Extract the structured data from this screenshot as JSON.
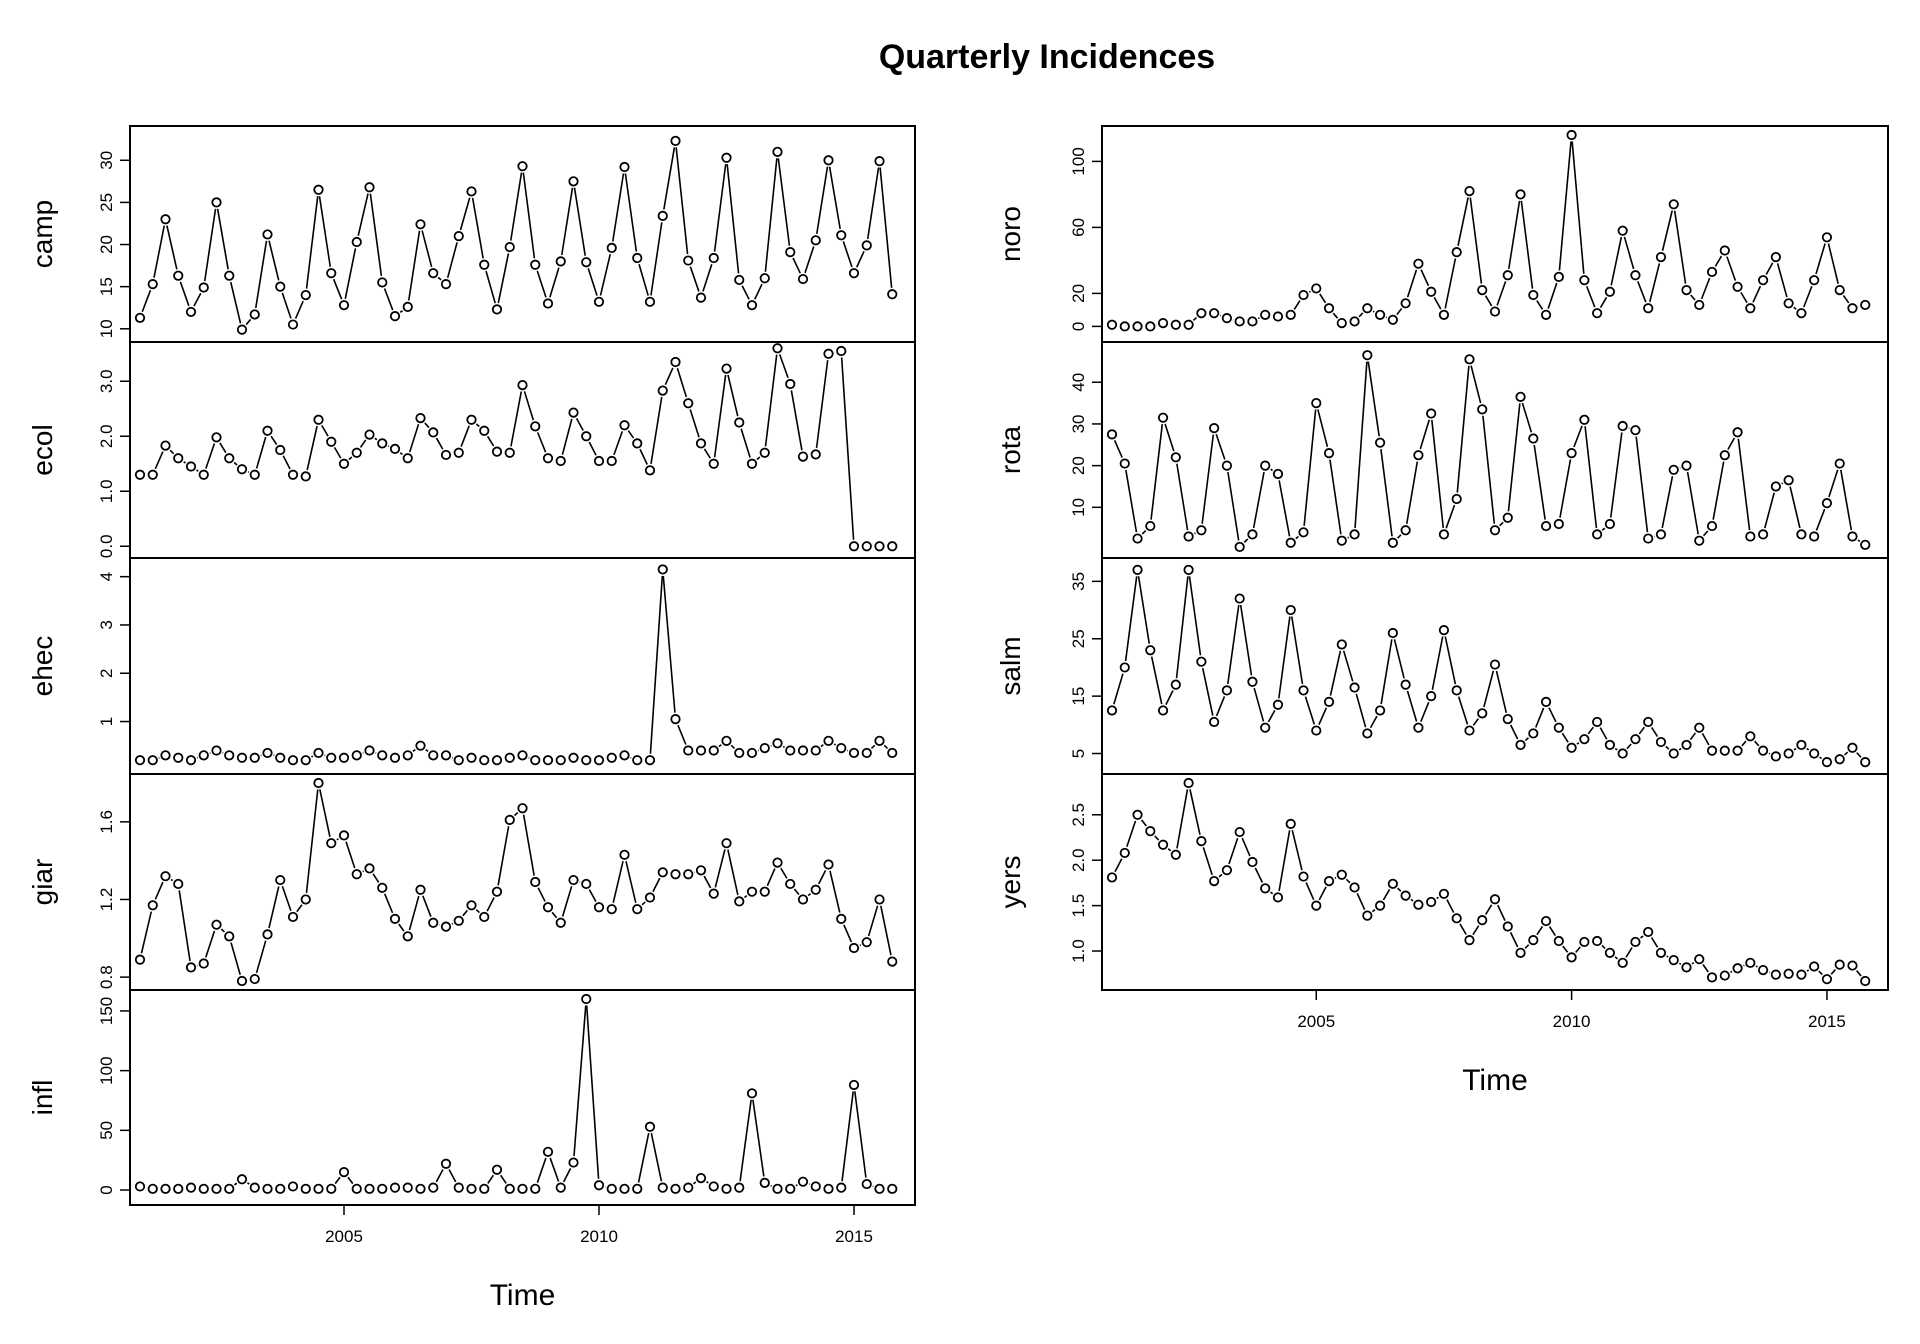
{
  "chart_data": {
    "type": "line",
    "title": "Quarterly Incidences",
    "xlabel": "Time",
    "x_start": 2001,
    "frequency": "quarterly",
    "xlim": [
      2001,
      2016
    ],
    "x_ticks": [
      "2005",
      "2010",
      "2015"
    ],
    "columns": [
      {
        "series": [
          {
            "name": "camp",
            "ylim": [
              9.5,
              33
            ],
            "y_ticks": [
              "10",
              "15",
              "20",
              "25",
              "30"
            ],
            "values": [
              11.3,
              15.3,
              23,
              16.3,
              12,
              14.9,
              25,
              16.3,
              9.9,
              11.7,
              21.2,
              15,
              10.5,
              14,
              26.5,
              16.6,
              12.8,
              20.3,
              26.8,
              15.5,
              11.5,
              12.6,
              22.4,
              16.6,
              15.3,
              21,
              26.3,
              17.6,
              12.3,
              19.7,
              29.3,
              17.6,
              13,
              18,
              27.5,
              17.9,
              13.2,
              19.6,
              29.2,
              18.4,
              13.2,
              23.4,
              32.3,
              18.1,
              13.7,
              18.4,
              30.3,
              15.8,
              12.8,
              16,
              31,
              19.1,
              15.9,
              20.5,
              30,
              21.1,
              16.6,
              19.9,
              29.9,
              14.1
            ]
          },
          {
            "name": "ecol",
            "ylim": [
              -0.05,
              3.55
            ],
            "y_ticks": [
              "0.0",
              "1.0",
              "2.0",
              "3.0"
            ],
            "values": [
              1.3,
              1.3,
              1.83,
              1.6,
              1.45,
              1.3,
              1.98,
              1.6,
              1.4,
              1.3,
              2.1,
              1.75,
              1.3,
              1.27,
              2.3,
              1.9,
              1.5,
              1.7,
              2.03,
              1.87,
              1.77,
              1.6,
              2.33,
              2.07,
              1.66,
              1.7,
              2.3,
              2.1,
              1.72,
              1.7,
              2.93,
              2.18,
              1.6,
              1.55,
              2.43,
              2,
              1.55,
              1.55,
              2.2,
              1.87,
              1.38,
              2.83,
              3.35,
              2.6,
              1.87,
              1.5,
              3.23,
              2.25,
              1.5,
              1.7,
              3.6,
              2.95,
              1.63,
              1.67,
              3.5,
              3.55,
              0,
              0,
              0,
              0
            ]
          },
          {
            "name": "ehec",
            "ylim": [
              0.1,
              4.2
            ],
            "y_ticks": [
              "1",
              "2",
              "3",
              "4"
            ],
            "values": [
              0.2,
              0.2,
              0.3,
              0.25,
              0.2,
              0.3,
              0.4,
              0.3,
              0.25,
              0.25,
              0.35,
              0.25,
              0.2,
              0.2,
              0.35,
              0.25,
              0.25,
              0.3,
              0.4,
              0.3,
              0.25,
              0.3,
              0.5,
              0.3,
              0.3,
              0.2,
              0.25,
              0.2,
              0.2,
              0.25,
              0.3,
              0.2,
              0.2,
              0.2,
              0.25,
              0.2,
              0.2,
              0.25,
              0.3,
              0.2,
              0.2,
              4.15,
              1.05,
              0.4,
              0.4,
              0.4,
              0.6,
              0.35,
              0.35,
              0.45,
              0.55,
              0.4,
              0.4,
              0.4,
              0.6,
              0.45,
              0.35,
              0.35,
              0.6,
              0.35
            ]
          },
          {
            "name": "giar",
            "ylim": [
              0.78,
              1.8
            ],
            "y_ticks": [
              "0.8",
              "1.2",
              "1.6"
            ],
            "values": [
              0.89,
              1.17,
              1.32,
              1.28,
              0.85,
              0.87,
              1.07,
              1.01,
              0.78,
              0.79,
              1.02,
              1.3,
              1.11,
              1.2,
              1.8,
              1.49,
              1.53,
              1.33,
              1.36,
              1.26,
              1.1,
              1.01,
              1.25,
              1.08,
              1.06,
              1.09,
              1.17,
              1.11,
              1.24,
              1.61,
              1.67,
              1.29,
              1.16,
              1.08,
              1.3,
              1.28,
              1.16,
              1.15,
              1.43,
              1.15,
              1.21,
              1.34,
              1.33,
              1.33,
              1.35,
              1.23,
              1.49,
              1.19,
              1.24,
              1.24,
              1.39,
              1.28,
              1.2,
              1.25,
              1.38,
              1.1,
              0.95,
              0.98,
              1.2,
              0.88
            ]
          },
          {
            "name": "infl",
            "ylim": [
              -5,
              160
            ],
            "y_ticks": [
              "0",
              "50",
              "100",
              "150"
            ],
            "values": [
              3,
              1,
              1,
              1,
              2,
              1,
              1,
              1,
              9,
              2,
              1,
              1,
              3,
              1,
              1,
              1,
              15,
              1,
              1,
              1,
              2,
              2,
              1,
              2,
              22,
              2,
              1,
              1,
              17,
              1,
              1,
              1,
              32,
              2,
              23,
              160,
              4,
              1,
              1,
              1,
              53,
              2,
              1,
              2,
              10,
              3,
              1,
              2,
              81,
              6,
              1,
              1,
              7,
              3,
              1,
              2,
              88,
              5,
              1,
              1
            ]
          }
        ]
      },
      {
        "series": [
          {
            "name": "noro",
            "ylim": [
              -4,
              116
            ],
            "y_ticks": [
              "0",
              "20",
              "60",
              "100"
            ],
            "values": [
              1,
              0,
              0,
              0,
              2,
              1,
              1,
              8,
              8,
              5,
              3,
              3,
              7,
              6,
              7,
              19,
              23,
              11,
              2,
              3,
              11,
              7,
              4,
              14,
              38,
              21,
              7,
              45,
              82,
              22,
              9,
              31,
              80,
              19,
              7,
              30,
              116,
              28,
              8,
              21,
              58,
              31,
              11,
              42,
              74,
              22,
              13,
              33,
              46,
              24,
              11,
              28,
              42,
              14,
              8,
              28,
              54,
              22,
              11,
              13
            ]
          },
          {
            "name": "rota",
            "ylim": [
              0,
              47.5
            ],
            "y_ticks": [
              "10",
              "20",
              "30",
              "40"
            ],
            "values": [
              27.5,
              20.5,
              2.5,
              5.5,
              31.5,
              22,
              3,
              4.5,
              29,
              20,
              0.5,
              3.5,
              20,
              18,
              1.5,
              4,
              35,
              23,
              2,
              3.5,
              46.5,
              25.5,
              1.5,
              4.5,
              22.5,
              32.5,
              3.5,
              12,
              45.5,
              33.5,
              4.5,
              7.5,
              36.5,
              26.5,
              5.5,
              6,
              23,
              31,
              3.5,
              6,
              29.5,
              28.5,
              2.5,
              3.5,
              19,
              20,
              2,
              5.5,
              22.5,
              28,
              3,
              3.5,
              15,
              16.5,
              3.5,
              3,
              11,
              20.5,
              3,
              1
            ]
          },
          {
            "name": "salm",
            "ylim": [
              3,
              37.5
            ],
            "y_ticks": [
              "5",
              "15",
              "25",
              "35"
            ],
            "values": [
              12.5,
              20,
              37,
              23,
              12.5,
              17,
              37,
              21,
              10.5,
              16,
              32,
              17.5,
              9.5,
              13.5,
              30,
              16,
              9,
              14,
              24,
              16.5,
              8.5,
              12.5,
              26,
              17,
              9.5,
              15,
              26.5,
              16,
              9,
              12,
              20.5,
              11,
              6.5,
              8.5,
              14,
              9.5,
              6,
              7.5,
              10.5,
              6.5,
              5,
              7.5,
              10.5,
              7,
              5,
              6.5,
              9.5,
              5.5,
              5.5,
              5.5,
              8,
              5.5,
              4.5,
              5,
              6.5,
              5,
              3.5,
              4,
              6,
              3.5
            ]
          },
          {
            "name": "yers",
            "ylim": [
              0.67,
              2.85
            ],
            "y_ticks": [
              "1.0",
              "1.5",
              "2.0",
              "2.5"
            ],
            "values": [
              1.81,
              2.08,
              2.5,
              2.32,
              2.17,
              2.06,
              2.85,
              2.21,
              1.77,
              1.89,
              2.31,
              1.98,
              1.69,
              1.59,
              2.4,
              1.82,
              1.5,
              1.77,
              1.84,
              1.7,
              1.39,
              1.5,
              1.74,
              1.61,
              1.51,
              1.54,
              1.63,
              1.36,
              1.12,
              1.34,
              1.57,
              1.27,
              0.98,
              1.12,
              1.33,
              1.11,
              0.93,
              1.1,
              1.11,
              0.98,
              0.87,
              1.1,
              1.21,
              0.98,
              0.9,
              0.82,
              0.91,
              0.71,
              0.73,
              0.81,
              0.87,
              0.79,
              0.74,
              0.75,
              0.74,
              0.83,
              0.69,
              0.85,
              0.84,
              0.67
            ]
          }
        ]
      }
    ]
  }
}
